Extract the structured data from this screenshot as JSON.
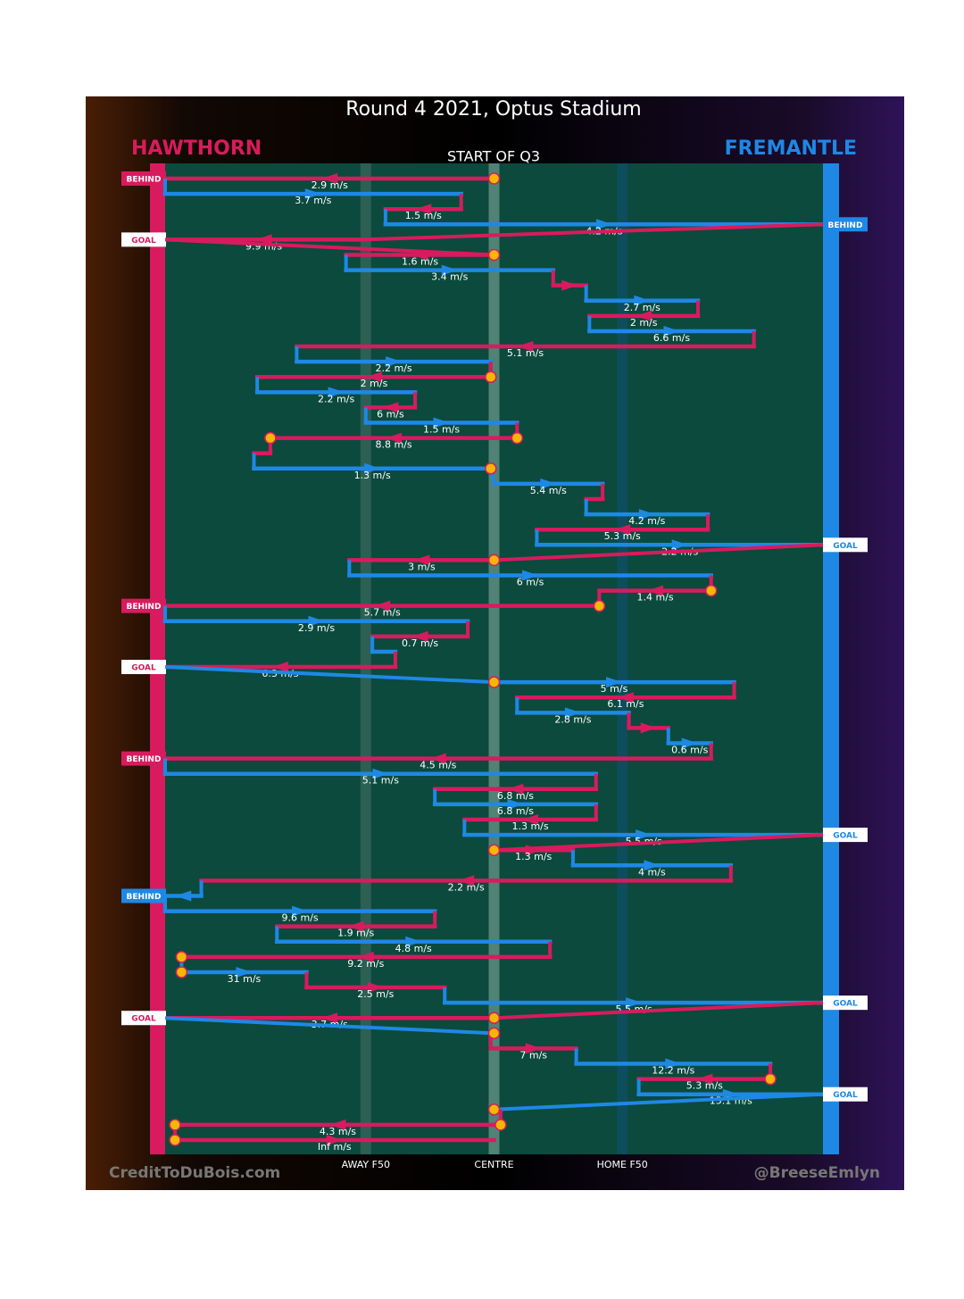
{
  "chart_data": {
    "type": "possession-chain",
    "title": "Round 4 2021, Optus Stadium",
    "subtitle": "START OF Q3",
    "teams": [
      {
        "name": "HAWTHORN",
        "color": "#d81b5e"
      },
      {
        "name": "FREMANTLE",
        "color": "#1e88e5"
      }
    ],
    "xlim": [
      -100,
      100
    ],
    "xticks": [
      {
        "value": -39,
        "label": "AWAY F50"
      },
      {
        "value": 0,
        "label": "CENTRE"
      },
      {
        "value": 39,
        "label": "HOME F50"
      }
    ],
    "credit_left": "CreditToDuBois.com",
    "credit_right": "@BreeseEmlyn",
    "segments": [
      {
        "team": 0,
        "from": 0,
        "to": -100,
        "label": "2.9 m/s",
        "start_stoppage": true,
        "result": "BEHIND"
      },
      {
        "team": 1,
        "from": -100,
        "to": -10,
        "label": "3.7 m/s"
      },
      {
        "team": 0,
        "from": -10,
        "to": -33,
        "label": "1.5 m/s"
      },
      {
        "team": 1,
        "from": -33,
        "to": 100,
        "label": "4.2 m/s",
        "result": "BEHIND"
      },
      {
        "team": 0,
        "from": -40,
        "to": -100,
        "label": "9.9 m/s",
        "result": "GOAL"
      },
      {
        "team": 0,
        "from": 0,
        "to": -45,
        "label": "1.6 m/s",
        "start_stoppage": true
      },
      {
        "team": 1,
        "from": -45,
        "to": 18,
        "label": "3.4 m/s"
      },
      {
        "team": 0,
        "from": 18,
        "to": 28,
        "label": null
      },
      {
        "team": 1,
        "from": 28,
        "to": 62,
        "label": "2.7 m/s"
      },
      {
        "team": 0,
        "from": 62,
        "to": 29,
        "label": "2 m/s"
      },
      {
        "team": 1,
        "from": 29,
        "to": 79,
        "label": "6.6 m/s"
      },
      {
        "team": 0,
        "from": 79,
        "to": -60,
        "label": "5.1 m/s"
      },
      {
        "team": 1,
        "from": -60,
        "to": -1,
        "label": "2.2 m/s"
      },
      {
        "team": 0,
        "from": -1,
        "to": -72,
        "label": "2 m/s",
        "start_stoppage": true
      },
      {
        "team": 1,
        "from": -72,
        "to": -24,
        "label": "2.2 m/s"
      },
      {
        "team": 0,
        "from": -24,
        "to": -39,
        "label": "6 m/s"
      },
      {
        "team": 1,
        "from": -39,
        "to": 7,
        "label": "1.5 m/s"
      },
      {
        "team": 0,
        "from": 7,
        "to": -68,
        "label": "8.8 m/s",
        "start_stoppage": true,
        "end_stoppage": true
      },
      {
        "team": 0,
        "from": -68,
        "to": -73,
        "label": null
      },
      {
        "team": 1,
        "from": -73,
        "to": -1,
        "label": "1.3 m/s",
        "end_stoppage": true
      },
      {
        "team": 1,
        "from": 0,
        "to": 33,
        "label": "5.4 m/s"
      },
      {
        "team": 0,
        "from": 33,
        "to": 28,
        "label": null
      },
      {
        "team": 1,
        "from": 28,
        "to": 65,
        "label": "4.2 m/s"
      },
      {
        "team": 0,
        "from": 65,
        "to": 13,
        "label": "5.3 m/s"
      },
      {
        "team": 1,
        "from": 13,
        "to": 100,
        "label": "2.2 m/s",
        "result": "GOAL"
      },
      {
        "team": 0,
        "from": 0,
        "to": -44,
        "label": "3 m/s",
        "start_stoppage": true
      },
      {
        "team": 1,
        "from": -44,
        "to": 66,
        "label": "6 m/s"
      },
      {
        "team": 0,
        "from": 66,
        "to": 32,
        "label": "1.4 m/s",
        "start_stoppage": true
      },
      {
        "team": 0,
        "from": 32,
        "to": -100,
        "label": "5.7 m/s",
        "start_stoppage": true,
        "result": "BEHIND"
      },
      {
        "team": 1,
        "from": -100,
        "to": -8,
        "label": "2.9 m/s"
      },
      {
        "team": 0,
        "from": -8,
        "to": -37,
        "label": "0.7 m/s"
      },
      {
        "team": 1,
        "from": -37,
        "to": -30,
        "label": null
      },
      {
        "team": 0,
        "from": -30,
        "to": -100,
        "label": "6.3 m/s",
        "result": "GOAL"
      },
      {
        "team": 1,
        "from": 0,
        "to": 73,
        "label": "5 m/s",
        "start_stoppage": true
      },
      {
        "team": 0,
        "from": 73,
        "to": 7,
        "label": "6.1 m/s"
      },
      {
        "team": 1,
        "from": 7,
        "to": 41,
        "label": "2.8 m/s"
      },
      {
        "team": 0,
        "from": 41,
        "to": 53,
        "label": null
      },
      {
        "team": 1,
        "from": 53,
        "to": 66,
        "label": "0.6 m/s"
      },
      {
        "team": 0,
        "from": 66,
        "to": -100,
        "label": "4.5 m/s",
        "result": "BEHIND"
      },
      {
        "team": 1,
        "from": -100,
        "to": 31,
        "label": "5.1 m/s"
      },
      {
        "team": 0,
        "from": 31,
        "to": -18,
        "label": "6.8 m/s"
      },
      {
        "team": 1,
        "from": -18,
        "to": 31,
        "label": "6.8 m/s"
      },
      {
        "team": 0,
        "from": 31,
        "to": -9,
        "label": "1.3 m/s"
      },
      {
        "team": 1,
        "from": -9,
        "to": 100,
        "label": "5.5 m/s",
        "result": "GOAL"
      },
      {
        "team": 0,
        "from": 0,
        "to": 24,
        "label": "1.3 m/s",
        "start_stoppage": true
      },
      {
        "team": 1,
        "from": 24,
        "to": 72,
        "label": "4 m/s"
      },
      {
        "team": 0,
        "from": 72,
        "to": -89,
        "label": "2.2 m/s"
      },
      {
        "team": 1,
        "from": -89,
        "to": -100,
        "label": null,
        "result": "BEHIND"
      },
      {
        "team": 1,
        "from": -100,
        "to": -18,
        "label": "9.6 m/s"
      },
      {
        "team": 0,
        "from": -18,
        "to": -66,
        "label": "1.9 m/s"
      },
      {
        "team": 1,
        "from": -66,
        "to": 17,
        "label": "4.8 m/s"
      },
      {
        "team": 0,
        "from": 17,
        "to": -95,
        "label": "9.2 m/s",
        "end_stoppage": true
      },
      {
        "team": 1,
        "from": -95,
        "to": -57,
        "label": "31 m/s",
        "start_stoppage": true
      },
      {
        "team": 0,
        "from": -57,
        "to": -15,
        "label": "2.5 m/s"
      },
      {
        "team": 1,
        "from": -15,
        "to": 100,
        "label": "5.5 m/s",
        "result": "GOAL"
      },
      {
        "team": 0,
        "from": 0,
        "to": -100,
        "label": "3.7 m/s",
        "start_stoppage": true,
        "result": "GOAL"
      },
      {
        "team": 1,
        "from": 0,
        "to": -1,
        "label": null,
        "start_stoppage": true
      },
      {
        "team": 0,
        "from": -1,
        "to": 25,
        "label": "7 m/s"
      },
      {
        "team": 1,
        "from": 25,
        "to": 84,
        "label": "12.2 m/s"
      },
      {
        "team": 0,
        "from": 84,
        "to": 44,
        "label": "5.3 m/s",
        "start_stoppage": true
      },
      {
        "team": 1,
        "from": 44,
        "to": 100,
        "label": "15.1 m/s",
        "result": "GOAL"
      },
      {
        "team": 1,
        "from": 0,
        "to": 2,
        "label": null,
        "start_stoppage": true
      },
      {
        "team": 0,
        "from": 2,
        "to": -97,
        "label": "4.3 m/s",
        "start_stoppage": true,
        "end_stoppage": true
      },
      {
        "team": 0,
        "from": -97,
        "to": 0,
        "label": "Inf m/s",
        "start_stoppage": true
      }
    ]
  }
}
